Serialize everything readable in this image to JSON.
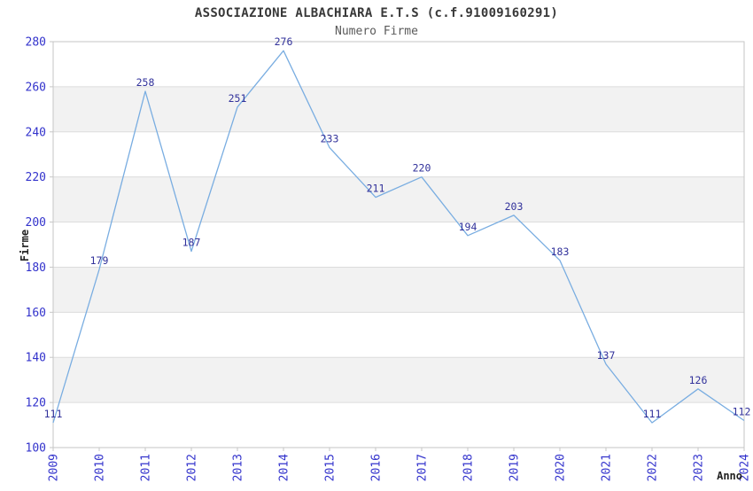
{
  "chart_data": {
    "type": "line",
    "title": "ASSOCIAZIONE ALBACHIARA E.T.S (c.f.91009160291)",
    "subtitle": "Numero Firme",
    "xlabel": "Anno",
    "ylabel": "Firme",
    "x": [
      2009,
      2010,
      2011,
      2012,
      2013,
      2014,
      2015,
      2016,
      2017,
      2018,
      2019,
      2020,
      2021,
      2022,
      2023,
      2024
    ],
    "series": [
      {
        "name": "Numero Firme",
        "values": [
          111,
          179,
          258,
          187,
          251,
          276,
          233,
          211,
          220,
          194,
          203,
          183,
          137,
          111,
          126,
          112
        ]
      }
    ],
    "ylim": [
      100,
      280
    ],
    "ytick_step": 20,
    "yticks": [
      100,
      120,
      140,
      160,
      180,
      200,
      220,
      240,
      260,
      280
    ],
    "grid": true,
    "bands_alternating": true,
    "legend": "none",
    "data_labels_visible": true,
    "colors": {
      "line": "#79ade1",
      "tick_label": "#3333cc",
      "data_label": "#32329b",
      "band": "#f2f2f2",
      "gridline": "#dcdcdc",
      "border": "#c6c6c6",
      "axis_title": "#222222",
      "background": "#ffffff"
    }
  }
}
